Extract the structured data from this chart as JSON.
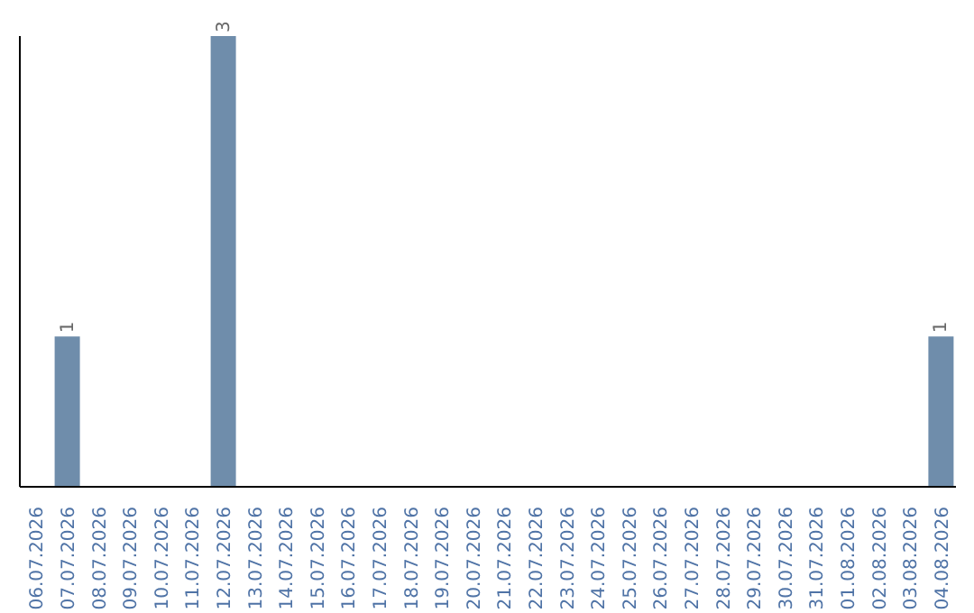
{
  "chart_data": {
    "type": "bar",
    "categories": [
      "06.07.2026",
      "07.07.2026",
      "08.07.2026",
      "09.07.2026",
      "10.07.2026",
      "11.07.2026",
      "12.07.2026",
      "13.07.2026",
      "14.07.2026",
      "15.07.2026",
      "16.07.2026",
      "17.07.2026",
      "18.07.2026",
      "19.07.2026",
      "20.07.2026",
      "21.07.2026",
      "22.07.2026",
      "23.07.2026",
      "24.07.2026",
      "25.07.2026",
      "26.07.2026",
      "27.07.2026",
      "28.07.2026",
      "29.07.2026",
      "30.07.2026",
      "31.07.2026",
      "01.08.2026",
      "02.08.2026",
      "03.08.2026",
      "04.08.2026"
    ],
    "values": [
      0,
      1,
      0,
      0,
      0,
      0,
      3,
      0,
      0,
      0,
      0,
      0,
      0,
      0,
      0,
      0,
      0,
      0,
      0,
      0,
      0,
      0,
      0,
      0,
      0,
      0,
      0,
      0,
      0,
      1
    ],
    "value_labels": [
      null,
      "1",
      null,
      null,
      null,
      null,
      "3",
      null,
      null,
      null,
      null,
      null,
      null,
      null,
      null,
      null,
      null,
      null,
      null,
      null,
      null,
      null,
      null,
      null,
      null,
      null,
      null,
      null,
      null,
      "1"
    ],
    "color": "#6f8dab",
    "tick_labels": "x"
  }
}
